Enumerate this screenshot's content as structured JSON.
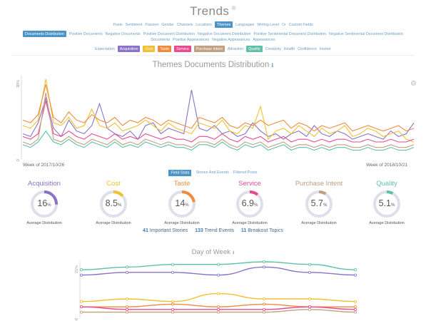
{
  "header": {
    "title": "Trends",
    "title_mark": "®"
  },
  "nav": {
    "row1": [
      {
        "label": "Posts",
        "active": false
      },
      {
        "label": "Sentiment",
        "active": false
      },
      {
        "label": "Passion",
        "active": false
      },
      {
        "label": "Gender",
        "active": false
      },
      {
        "label": "Channels",
        "active": false
      },
      {
        "label": "Locations",
        "active": false
      },
      {
        "label": "Themes",
        "active": true
      },
      {
        "label": "Languages",
        "active": false
      },
      {
        "label": "Writing Level",
        "active": false
      },
      {
        "label": "Or",
        "active": false,
        "plain": true
      },
      {
        "label": "Custom Fields",
        "active": false
      }
    ],
    "row2": [
      {
        "label": "Documents Distribution",
        "active": true
      },
      {
        "label": "Positive Documents",
        "active": false
      },
      {
        "label": "Negative Documents",
        "active": false
      },
      {
        "label": "Positive Document Distribution",
        "active": false
      },
      {
        "label": "Negative Document Distribution",
        "active": false
      },
      {
        "label": "Positive Sentimental Document Distribution",
        "active": false
      },
      {
        "label": "Negative Sentimental Document Distribution",
        "active": false
      }
    ],
    "row3": [
      {
        "label": "Documents",
        "active": false
      },
      {
        "label": "Positive Appearances",
        "active": false
      },
      {
        "label": "Negative Appearances",
        "active": false
      },
      {
        "label": "Appearances",
        "active": false
      }
    ],
    "row4": [
      {
        "label": "Expectation",
        "color": ""
      },
      {
        "label": "Acquisition",
        "color": "#8a72c8"
      },
      {
        "label": "Cost",
        "color": "#f0c030"
      },
      {
        "label": "Taste",
        "color": "#f08a40"
      },
      {
        "label": "Service",
        "color": "#e84a90"
      },
      {
        "label": "Purchase Intent",
        "color": "#c0a080"
      },
      {
        "label": "Attraction",
        "color": ""
      },
      {
        "label": "Quality",
        "color": "#5ec0a8"
      },
      {
        "label": "Creativity",
        "color": ""
      },
      {
        "label": "Health",
        "color": ""
      },
      {
        "label": "Confidence",
        "color": ""
      },
      {
        "label": "Humor",
        "color": ""
      }
    ]
  },
  "main_chart": {
    "title": "Themes Documents Distribution",
    "download_icon": "download-icon",
    "y_top": "30%",
    "y_bottom": "0",
    "x_start": "Week of 2017/10/26",
    "x_end": "Week of 2018/10/21"
  },
  "subtabs": [
    {
      "label": "Field Stats",
      "active": true
    },
    {
      "label": "Stories And Events",
      "active": false
    },
    {
      "label": "Filtered Posts",
      "active": false
    }
  ],
  "metrics": [
    {
      "name": "Acquisition",
      "value": "16",
      "unit": "%",
      "fraction": 0.16,
      "color": "#8a72c8",
      "avg": "Average Distribution"
    },
    {
      "name": "Cost",
      "value": "8.5",
      "unit": "%",
      "fraction": 0.085,
      "color": "#f0c030",
      "avg": "Average Distribution"
    },
    {
      "name": "Taste",
      "value": "14",
      "unit": "%",
      "fraction": 0.14,
      "color": "#f08a40",
      "avg": "Average Distribution"
    },
    {
      "name": "Service",
      "value": "6.9",
      "unit": "%",
      "fraction": 0.069,
      "color": "#e84a90",
      "avg": "Average Distribution"
    },
    {
      "name": "Purchase Intent",
      "value": "5.7",
      "unit": "%",
      "fraction": 0.057,
      "color": "#c0a080",
      "avg": "Average Distribution"
    },
    {
      "name": "Quality",
      "value": "5.1",
      "unit": "%",
      "fraction": 0.051,
      "color": "#5ec0a8",
      "avg": "Average Distribution"
    }
  ],
  "counts": {
    "stories_num": "41",
    "stories_label": "Important Stories",
    "events_num": "133",
    "events_label": "Trend Events",
    "topics_num": "11",
    "topics_label": "Breakout Topics"
  },
  "dow_chart": {
    "title": "Day of Week",
    "y_top": "21%",
    "y_bottom": "0"
  },
  "chart_data": [
    {
      "type": "line",
      "title": "Themes Documents Distribution",
      "ylim": [
        0,
        30
      ],
      "series": [
        {
          "name": "Acquisition",
          "color": "#8a72c8",
          "values": [
            9,
            8,
            13,
            22,
            11,
            8,
            14,
            10,
            9,
            12,
            20,
            11,
            9,
            8,
            10,
            7,
            12,
            13,
            9,
            11,
            10,
            9,
            25,
            11,
            10,
            12,
            9,
            10,
            8,
            9,
            13,
            10,
            8,
            9,
            7,
            9,
            10,
            8,
            12,
            9,
            8,
            10,
            9,
            7,
            8,
            9,
            8,
            7,
            10,
            8,
            9,
            13
          ]
        },
        {
          "name": "Cost",
          "color": "#f0c030",
          "values": [
            12,
            11,
            14,
            29,
            13,
            12,
            15,
            11,
            12,
            18,
            12,
            11,
            13,
            10,
            11,
            12,
            14,
            12,
            10,
            13,
            11,
            10,
            9,
            13,
            12,
            11,
            14,
            10,
            9,
            12,
            11,
            19,
            7,
            10,
            11,
            9,
            12,
            10,
            8,
            11,
            9,
            10,
            12,
            8,
            9,
            11,
            10,
            8,
            9,
            10,
            7,
            6
          ]
        },
        {
          "name": "Taste",
          "color": "#f08a40",
          "values": [
            14,
            13,
            16,
            27,
            15,
            13,
            17,
            14,
            13,
            16,
            14,
            13,
            15,
            12,
            14,
            13,
            15,
            14,
            12,
            14,
            13,
            12,
            11,
            15,
            14,
            13,
            15,
            12,
            11,
            13,
            12,
            14,
            12,
            13,
            14,
            11,
            13,
            12,
            10,
            12,
            11,
            12,
            13,
            10,
            11,
            12,
            11,
            10,
            11,
            12,
            10,
            11
          ]
        },
        {
          "name": "Service",
          "color": "#e84a90",
          "values": [
            8,
            7,
            9,
            21,
            9,
            8,
            10,
            8,
            7,
            9,
            8,
            7,
            9,
            7,
            8,
            7,
            9,
            8,
            7,
            8,
            7,
            7,
            6,
            8,
            8,
            7,
            9,
            7,
            6,
            8,
            7,
            8,
            6,
            7,
            8,
            6,
            7,
            7,
            6,
            7,
            6,
            7,
            7,
            6,
            6,
            7,
            6,
            6,
            7,
            6,
            6,
            7
          ]
        },
        {
          "name": "Purchase Intent",
          "color": "#c0a080",
          "values": [
            6,
            5,
            7,
            24,
            7,
            6,
            8,
            6,
            5,
            7,
            6,
            5,
            7,
            5,
            6,
            5,
            7,
            6,
            5,
            6,
            5,
            5,
            4,
            6,
            6,
            5,
            7,
            5,
            4,
            6,
            5,
            6,
            4,
            5,
            6,
            4,
            5,
            5,
            4,
            5,
            4,
            5,
            5,
            4,
            4,
            5,
            4,
            4,
            5,
            4,
            4,
            5
          ]
        },
        {
          "name": "Quality",
          "color": "#5ec0a8",
          "values": [
            5,
            4,
            6,
            10,
            6,
            5,
            7,
            5,
            4,
            6,
            5,
            4,
            6,
            4,
            5,
            4,
            6,
            5,
            4,
            5,
            4,
            4,
            3,
            5,
            5,
            4,
            6,
            4,
            3,
            5,
            4,
            5,
            3,
            4,
            5,
            3,
            4,
            4,
            3,
            4,
            3,
            4,
            4,
            3,
            3,
            4,
            3,
            3,
            4,
            3,
            3,
            4
          ]
        }
      ]
    },
    {
      "type": "line",
      "title": "Day of Week",
      "ylim": [
        0,
        21
      ],
      "series": [
        {
          "name": "Quality",
          "color": "#5ec0a8",
          "values": [
            18,
            19,
            20,
            20,
            21,
            20,
            18
          ]
        },
        {
          "name": "Acquisition",
          "color": "#8a72c8",
          "values": [
            16,
            17,
            17,
            16,
            19,
            17,
            16
          ]
        },
        {
          "name": "Cost",
          "color": "#f0c030",
          "values": [
            6,
            7,
            6,
            9,
            7,
            7,
            6
          ]
        },
        {
          "name": "Taste",
          "color": "#f08a40",
          "values": [
            4,
            4,
            5,
            4,
            5,
            4,
            4
          ]
        },
        {
          "name": "Service",
          "color": "#e84a90",
          "values": [
            4,
            3,
            3,
            3,
            3,
            4,
            3
          ]
        },
        {
          "name": "Purchase Intent",
          "color": "#c0a080",
          "values": [
            2,
            2,
            2,
            2,
            2,
            3,
            2
          ]
        }
      ]
    }
  ]
}
